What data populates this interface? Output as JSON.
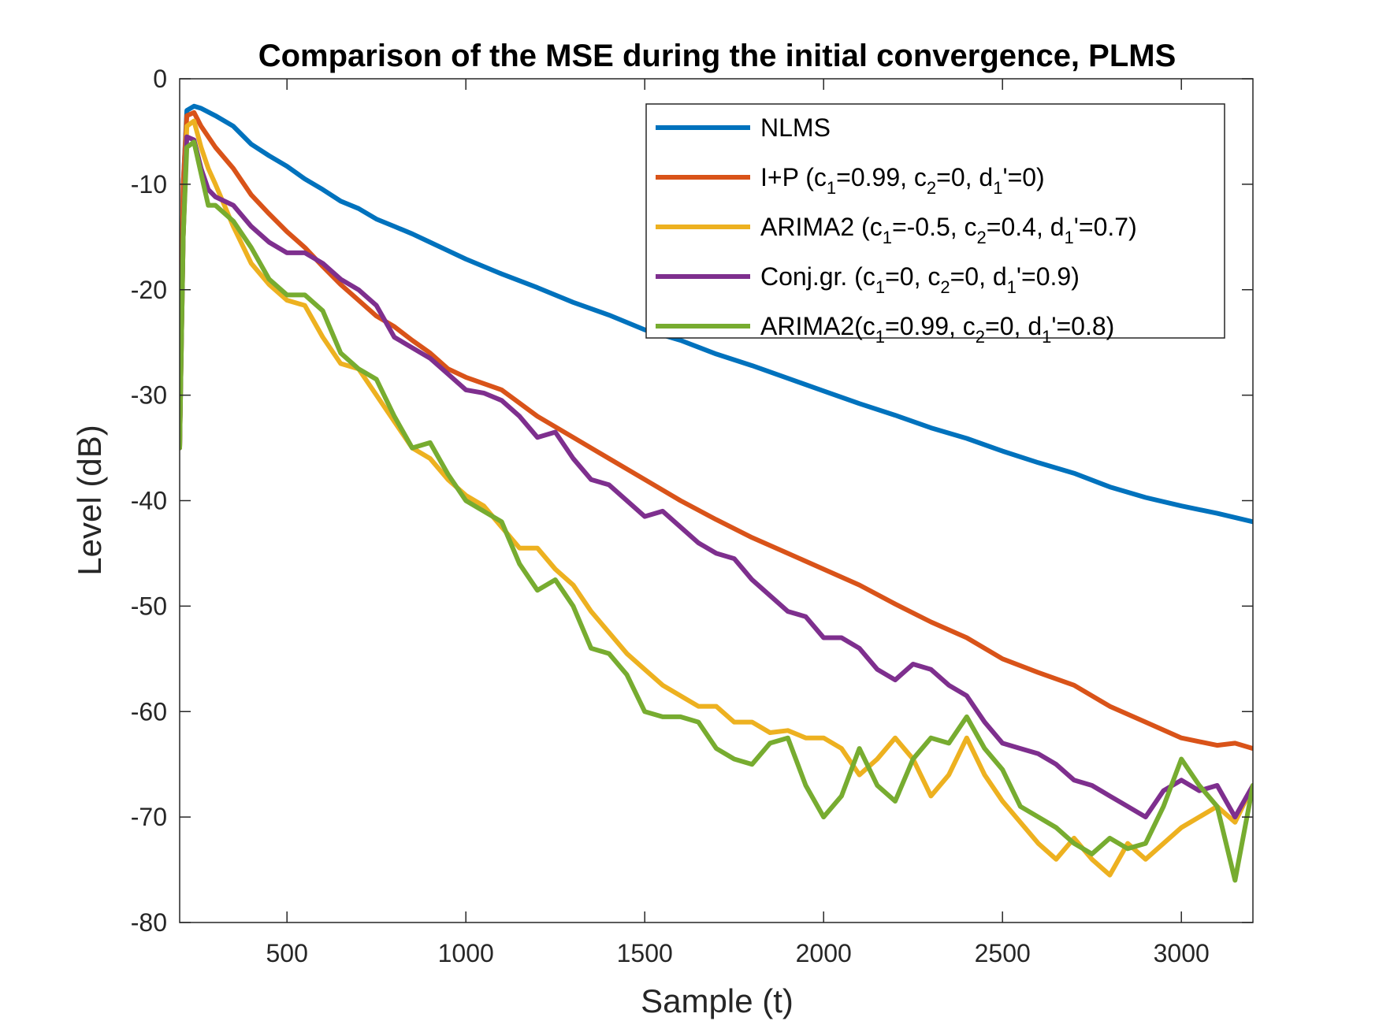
{
  "chart_data": {
    "type": "line",
    "title": "Comparison of the MSE during the initial convergence, PLMS",
    "xlabel": "Sample (t)",
    "ylabel": "Level (dB)",
    "xlim": [
      200,
      3200
    ],
    "ylim": [
      -80,
      0
    ],
    "xticks": [
      500,
      1000,
      1500,
      2000,
      2500,
      3000
    ],
    "yticks": [
      0,
      -10,
      -20,
      -30,
      -40,
      -50,
      -60,
      -70,
      -80
    ],
    "legend_position": "top-right",
    "series": [
      {
        "name": "NLMS",
        "label_parts": [
          "NLMS"
        ],
        "color": "#0072BD",
        "x": [
          200,
          210,
          220,
          240,
          260,
          300,
          350,
          400,
          450,
          500,
          550,
          600,
          650,
          700,
          750,
          800,
          850,
          900,
          950,
          1000,
          1100,
          1200,
          1300,
          1400,
          1500,
          1600,
          1700,
          1800,
          1900,
          2000,
          2100,
          2200,
          2300,
          2400,
          2500,
          2600,
          2700,
          2800,
          2900,
          3000,
          3100,
          3200
        ],
        "y": [
          -35,
          -10,
          -3,
          -2.6,
          -2.8,
          -3.5,
          -4.5,
          -6.2,
          -7.3,
          -8.3,
          -9.5,
          -10.5,
          -11.6,
          -12.3,
          -13.3,
          -14.0,
          -14.7,
          -15.5,
          -16.3,
          -17.1,
          -18.5,
          -19.8,
          -21.2,
          -22.4,
          -23.8,
          -24.8,
          -26.1,
          -27.2,
          -28.4,
          -29.6,
          -30.8,
          -31.9,
          -33.1,
          -34.1,
          -35.3,
          -36.4,
          -37.4,
          -38.7,
          -39.7,
          -40.5,
          -41.2,
          -42.0
        ]
      },
      {
        "name": "I+P (c1=0.99, c2=0, d1'=0)",
        "label_parts": [
          "I+P (c",
          "1",
          "=0.99, c",
          "2",
          "=0, d",
          "1",
          "'=0)"
        ],
        "color": "#D95319",
        "x": [
          200,
          210,
          220,
          240,
          260,
          300,
          350,
          400,
          450,
          500,
          550,
          600,
          650,
          700,
          750,
          800,
          850,
          900,
          950,
          1000,
          1100,
          1200,
          1300,
          1400,
          1500,
          1600,
          1700,
          1800,
          1900,
          2000,
          2100,
          2200,
          2300,
          2400,
          2500,
          2600,
          2700,
          2800,
          2900,
          3000,
          3100,
          3150,
          3200
        ],
        "y": [
          -35,
          -10,
          -3.5,
          -3.2,
          -4.5,
          -6.5,
          -8.5,
          -11,
          -12.8,
          -14.5,
          -16,
          -17.8,
          -19.5,
          -21,
          -22.5,
          -23.5,
          -24.8,
          -26,
          -27.5,
          -28.3,
          -29.5,
          -32.0,
          -34.0,
          -36.0,
          -38.0,
          -40.0,
          -41.8,
          -43.5,
          -45.0,
          -46.5,
          -48.0,
          -49.8,
          -51.5,
          -53.0,
          -55.0,
          -56.3,
          -57.5,
          -59.5,
          -61.0,
          -62.5,
          -63.2,
          -63.0,
          -63.5
        ]
      },
      {
        "name": "ARIMA2 (c1=-0.5, c2=0.4, d1'=0.7)",
        "label_parts": [
          "ARIMA2 (c",
          "1",
          "=-0.5, c",
          "2",
          "=0.4, d",
          "1",
          "'=0.7)"
        ],
        "color": "#EDB120",
        "x": [
          200,
          210,
          220,
          240,
          260,
          280,
          300,
          350,
          400,
          450,
          500,
          550,
          600,
          650,
          700,
          750,
          800,
          850,
          900,
          950,
          1000,
          1050,
          1100,
          1150,
          1200,
          1250,
          1300,
          1350,
          1400,
          1450,
          1500,
          1550,
          1600,
          1650,
          1700,
          1750,
          1800,
          1850,
          1900,
          1950,
          2000,
          2050,
          2100,
          2150,
          2200,
          2250,
          2300,
          2350,
          2400,
          2450,
          2500,
          2550,
          2600,
          2650,
          2700,
          2750,
          2800,
          2850,
          2900,
          2950,
          3000,
          3050,
          3100,
          3150,
          3200
        ],
        "y": [
          -35,
          -15,
          -4.5,
          -4.0,
          -6.5,
          -8.5,
          -10,
          -14,
          -17.5,
          -19.5,
          -21,
          -21.5,
          -24.5,
          -27,
          -27.5,
          -30,
          -32.5,
          -35,
          -36,
          -38,
          -39.5,
          -40.5,
          -42.5,
          -44.5,
          -44.5,
          -46.5,
          -48.0,
          -50.5,
          -52.5,
          -54.5,
          -56.0,
          -57.5,
          -58.5,
          -59.5,
          -59.5,
          -61.0,
          -61.0,
          -62.0,
          -61.8,
          -62.5,
          -62.5,
          -63.5,
          -66.0,
          -64.5,
          -62.5,
          -64.5,
          -68.0,
          -66.0,
          -62.5,
          -66.0,
          -68.5,
          -70.5,
          -72.5,
          -74.0,
          -72.0,
          -74.0,
          -75.5,
          -72.5,
          -74.0,
          -72.5,
          -71.0,
          -70.0,
          -69.0,
          -70.5,
          -67.0
        ]
      },
      {
        "name": "Conj.gr. (c1=0, c2=0, d1'=0.9)",
        "label_parts": [
          "Conj.gr. (c",
          "1",
          "=0, c",
          "2",
          "=0, d",
          "1",
          "'=0.9)"
        ],
        "color": "#7E2F8E",
        "x": [
          200,
          210,
          220,
          240,
          260,
          280,
          300,
          350,
          400,
          450,
          500,
          550,
          600,
          650,
          700,
          750,
          800,
          850,
          900,
          950,
          1000,
          1050,
          1100,
          1150,
          1200,
          1250,
          1300,
          1350,
          1400,
          1450,
          1500,
          1550,
          1600,
          1650,
          1700,
          1750,
          1800,
          1850,
          1900,
          1950,
          2000,
          2050,
          2100,
          2150,
          2200,
          2250,
          2300,
          2350,
          2400,
          2450,
          2500,
          2550,
          2600,
          2650,
          2700,
          2750,
          2800,
          2850,
          2900,
          2950,
          3000,
          3050,
          3100,
          3150,
          3200
        ],
        "y": [
          -35,
          -15,
          -5.5,
          -5.8,
          -8.5,
          -10.5,
          -11.2,
          -12.0,
          -14.0,
          -15.5,
          -16.5,
          -16.5,
          -17.5,
          -19.0,
          -20.0,
          -21.5,
          -24.5,
          -25.5,
          -26.5,
          -28.0,
          -29.5,
          -29.8,
          -30.5,
          -32.0,
          -34.0,
          -33.5,
          -36.0,
          -38.0,
          -38.5,
          -40.0,
          -41.5,
          -41.0,
          -42.5,
          -44.0,
          -45.0,
          -45.5,
          -47.5,
          -49.0,
          -50.5,
          -51.0,
          -53.0,
          -53.0,
          -54.0,
          -56.0,
          -57.0,
          -55.5,
          -56.0,
          -57.5,
          -58.5,
          -61.0,
          -63.0,
          -63.5,
          -64.0,
          -65.0,
          -66.5,
          -67.0,
          -68.0,
          -69.0,
          -70.0,
          -67.5,
          -66.5,
          -67.5,
          -67.0,
          -70.0,
          -67.0
        ]
      },
      {
        "name": "ARIMA2(c1=0.99, c2=0, d1'=0.8)",
        "label_parts": [
          "ARIMA2(c",
          "1",
          "=0.99, c",
          "2",
          "=0, d",
          "1",
          "'=0.8)"
        ],
        "color": "#77AC30",
        "x": [
          200,
          210,
          220,
          240,
          260,
          280,
          300,
          350,
          400,
          450,
          500,
          550,
          600,
          650,
          700,
          750,
          800,
          850,
          900,
          950,
          1000,
          1050,
          1100,
          1150,
          1200,
          1250,
          1300,
          1350,
          1400,
          1450,
          1500,
          1550,
          1600,
          1650,
          1700,
          1750,
          1800,
          1850,
          1900,
          1950,
          2000,
          2050,
          2100,
          2150,
          2200,
          2250,
          2300,
          2350,
          2400,
          2450,
          2500,
          2550,
          2600,
          2650,
          2700,
          2750,
          2800,
          2850,
          2900,
          2950,
          3000,
          3050,
          3100,
          3150,
          3200
        ],
        "y": [
          -35,
          -15,
          -6.5,
          -6.0,
          -9.0,
          -12.0,
          -12.0,
          -13.5,
          -16.0,
          -19.0,
          -20.5,
          -20.5,
          -22.0,
          -26.0,
          -27.5,
          -28.5,
          -32.0,
          -35.0,
          -34.5,
          -37.5,
          -40.0,
          -41.0,
          -42.0,
          -46.0,
          -48.5,
          -47.5,
          -50.0,
          -54.0,
          -54.5,
          -56.5,
          -60.0,
          -60.5,
          -60.5,
          -61.0,
          -63.5,
          -64.5,
          -65.0,
          -63.0,
          -62.5,
          -67.0,
          -70.0,
          -68.0,
          -63.5,
          -67.0,
          -68.5,
          -64.5,
          -62.5,
          -63.0,
          -60.5,
          -63.5,
          -65.5,
          -69.0,
          -70.0,
          -71.0,
          -72.5,
          -73.5,
          -72.0,
          -73.0,
          -72.5,
          -69.0,
          -64.5,
          -67.0,
          -69.0,
          -76.0,
          -67.0
        ]
      }
    ]
  }
}
